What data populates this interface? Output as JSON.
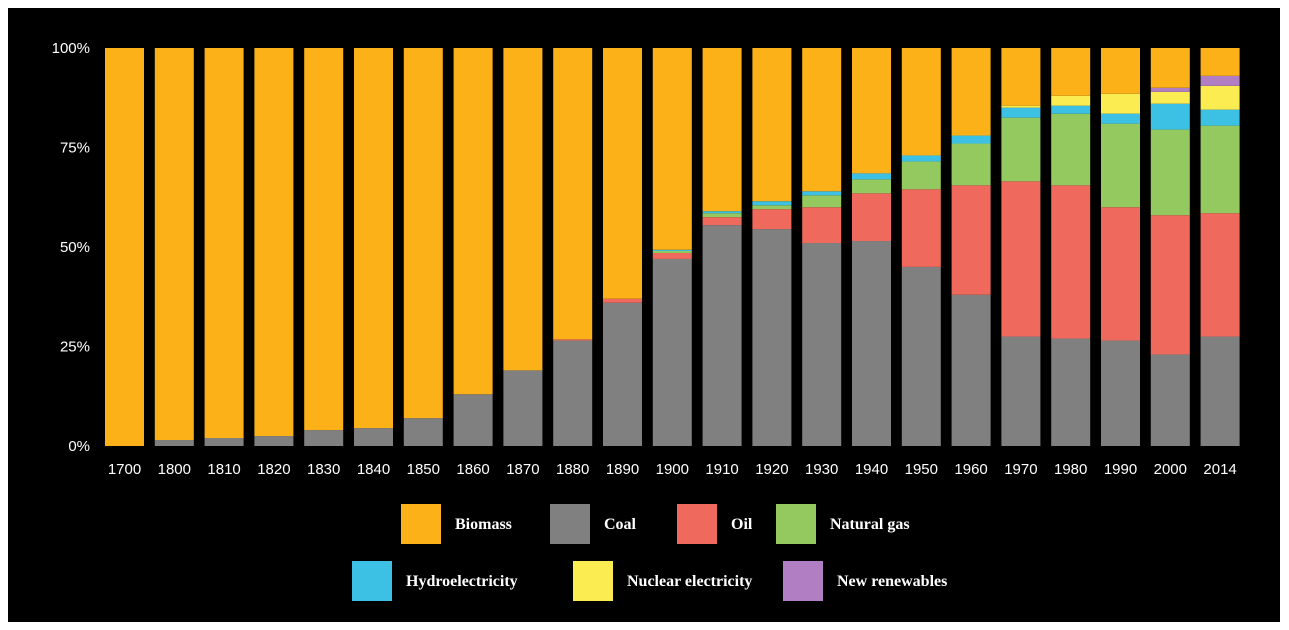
{
  "chart_data": {
    "type": "bar",
    "stacked": true,
    "title": "",
    "xlabel": "",
    "ylabel": "",
    "ylim": [
      0,
      100
    ],
    "y_ticks": [
      "0%",
      "25%",
      "50%",
      "75%",
      "100%"
    ],
    "y_tick_values": [
      0,
      25,
      50,
      75,
      100
    ],
    "categories": [
      "1700",
      "1800",
      "1810",
      "1820",
      "1830",
      "1840",
      "1850",
      "1860",
      "1870",
      "1880",
      "1890",
      "1900",
      "1910",
      "1920",
      "1930",
      "1940",
      "1950",
      "1960",
      "1970",
      "1980",
      "1990",
      "2000",
      "2014"
    ],
    "series": [
      {
        "name": "Coal",
        "color": "#808080",
        "values": [
          0,
          1.5,
          2,
          2.5,
          4,
          4.5,
          7,
          13,
          19,
          26.5,
          36,
          47,
          55.5,
          54.5,
          51,
          51.5,
          45,
          38,
          27.5,
          27,
          26.5,
          23,
          27.5
        ]
      },
      {
        "name": "Oil",
        "color": "#ef6a5c",
        "values": [
          0,
          0,
          0,
          0,
          0,
          0,
          0,
          0,
          0,
          0.3,
          1,
          1.5,
          2,
          5,
          9,
          12,
          19.5,
          27.5,
          39,
          38.5,
          33.5,
          35,
          31
        ]
      },
      {
        "name": "Natural gas",
        "color": "#93c95f",
        "values": [
          0,
          0,
          0,
          0,
          0,
          0,
          0,
          0,
          0,
          0,
          0,
          0.5,
          1,
          1,
          3,
          3.5,
          7,
          10.5,
          16,
          18,
          21,
          21.5,
          22
        ]
      },
      {
        "name": "Hydroelectricity",
        "color": "#3cc1e4",
        "values": [
          0,
          0,
          0,
          0,
          0,
          0,
          0,
          0,
          0,
          0,
          0,
          0.3,
          0.5,
          1,
          1,
          1.5,
          1.5,
          2,
          2.5,
          2,
          2.5,
          6.5,
          4
        ]
      },
      {
        "name": "Nuclear electricity",
        "color": "#fbec52",
        "values": [
          0,
          0,
          0,
          0,
          0,
          0,
          0,
          0,
          0,
          0,
          0,
          0,
          0,
          0,
          0,
          0,
          0,
          0,
          0.5,
          2.5,
          5,
          3,
          6
        ]
      },
      {
        "name": "New renewables",
        "color": "#b27ec3",
        "values": [
          0,
          0,
          0,
          0,
          0,
          0,
          0,
          0,
          0,
          0,
          0,
          0,
          0,
          0,
          0,
          0,
          0,
          0,
          0,
          0,
          0,
          1,
          2.5
        ]
      },
      {
        "name": "Biomass",
        "color": "#fbb117",
        "values": [
          100,
          98.5,
          98,
          97.5,
          96,
          95.5,
          93,
          87,
          81,
          73.2,
          63,
          50.7,
          41,
          38.5,
          36,
          31.5,
          27,
          22,
          14.5,
          12,
          11.5,
          10,
          7
        ]
      }
    ],
    "legend": {
      "placement": "bottom",
      "rows": [
        [
          "Biomass",
          "Coal",
          "Oil",
          "Natural gas"
        ],
        [
          "Hydroelectricity",
          "Nuclear electricity",
          "New renewables"
        ]
      ]
    },
    "grid": false,
    "background": "#000000"
  }
}
